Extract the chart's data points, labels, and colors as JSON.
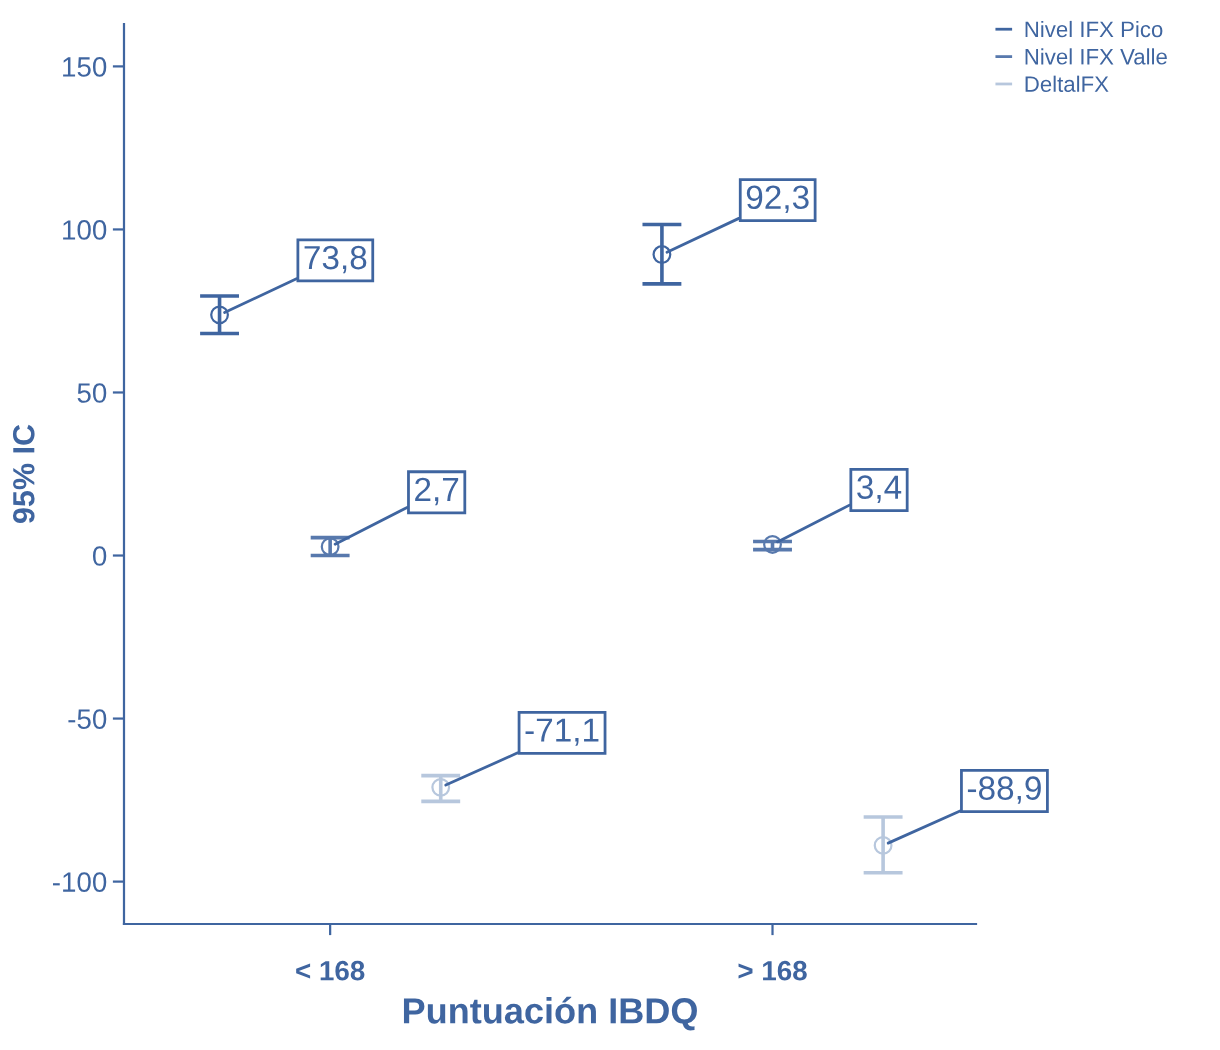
{
  "chart_data": {
    "type": "scatter",
    "xlabel": "Puntuación IBDQ",
    "ylabel": "95% IC",
    "categories": [
      "< 168",
      "> 168"
    ],
    "ylim": [
      -113,
      163
    ],
    "yticks": [
      -100,
      -50,
      0,
      50,
      100,
      150
    ],
    "grid": false,
    "legend": "top right",
    "marker": "circle",
    "series": [
      {
        "name": "Nivel IFX Pico",
        "color": "#3f65a0",
        "values": [
          73.8,
          92.3
        ],
        "errors": [
          [
            68.1,
            79.6
          ],
          [
            83.3,
            101.5
          ]
        ],
        "value_labels": [
          "73,8",
          "92,3"
        ]
      },
      {
        "name": "Nivel IFX Valle",
        "color": "#5879ad",
        "values": [
          2.7,
          3.4
        ],
        "errors": [
          [
            0,
            5.5
          ],
          [
            1.8,
            4.3
          ]
        ],
        "value_labels": [
          "2,7",
          "3,4"
        ]
      },
      {
        "name": "DeltalFX",
        "color": "#b7c7dd",
        "values": [
          -71.1,
          -88.9
        ],
        "errors": [
          [
            -75.4,
            -67.5
          ],
          [
            -97.3,
            -80.2
          ]
        ],
        "value_labels": [
          "-71,1",
          "-88,9"
        ]
      }
    ]
  }
}
